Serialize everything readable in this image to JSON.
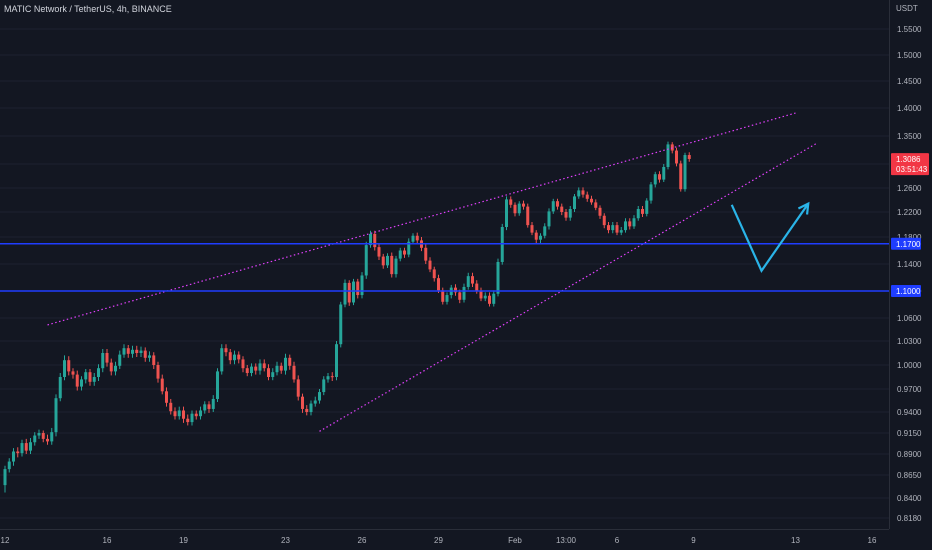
{
  "header": {
    "title": "MATIC Network / TetherUS, 4h, BINANCE"
  },
  "colors": {
    "background": "#131722",
    "up": "#26a69a",
    "down": "#ef5350",
    "hline": "#1f3dff",
    "channel": "#e040fb",
    "arrow": "#2ab4e8",
    "axis_text": "#b2b5be",
    "price_tag": "#f23645"
  },
  "chart_data": {
    "type": "candlestick",
    "symbol": "MATIC Network / TetherUS",
    "interval": "4h",
    "exchange": "BINANCE",
    "y_axis": {
      "unit_label": "USDT",
      "range": [
        0.8,
        1.57
      ],
      "ticks": [
        "1.5500",
        "1.5000",
        "1.4500",
        "1.4000",
        "1.3500",
        "1.3000",
        "1.2600",
        "1.2200",
        "1.1800",
        "1.1400",
        "1.1000",
        "1.0600",
        "1.0300",
        "1.0000",
        "0.9700",
        "0.9400",
        "0.9150",
        "0.8900",
        "0.8650",
        "0.8400",
        "0.8180"
      ],
      "tick_values": [
        1.55,
        1.5,
        1.45,
        1.4,
        1.35,
        1.3,
        1.26,
        1.22,
        1.18,
        1.14,
        1.1,
        1.06,
        1.03,
        1.0,
        0.97,
        0.94,
        0.915,
        0.89,
        0.865,
        0.84,
        0.818
      ]
    },
    "x_axis": {
      "ticks": [
        "12",
        "16",
        "19",
        "23",
        "26",
        "29",
        "Feb",
        "13:00",
        "6",
        "9",
        "13",
        "16"
      ],
      "tick_index": [
        0,
        24,
        42,
        66,
        84,
        102,
        120,
        132,
        144,
        162,
        186,
        204
      ]
    },
    "horizontal_lines": [
      {
        "price": 1.17,
        "label": "1.1700"
      },
      {
        "price": 1.1,
        "label": "1.1000"
      }
    ],
    "current_price": {
      "price": 1.3086,
      "label": "1.3086",
      "countdown": "03:51:43"
    },
    "channel_lines": [
      {
        "from": {
          "i": 10,
          "price": 1.051
        },
        "to": {
          "i": 186,
          "price": 1.391
        }
      },
      {
        "from": {
          "i": 74,
          "price": 0.917
        },
        "to": {
          "i": 191,
          "price": 1.337
        }
      }
    ],
    "projection_arrow": [
      {
        "i": 171,
        "price": 1.232
      },
      {
        "i": 178,
        "price": 1.13
      },
      {
        "i": 189,
        "price": 1.234
      }
    ],
    "candles": [
      [
        0.854,
        0.872,
        0.846,
        0.876
      ],
      [
        0.872,
        0.881,
        0.868,
        0.885
      ],
      [
        0.881,
        0.893,
        0.876,
        0.897
      ],
      [
        0.893,
        0.891,
        0.886,
        0.898
      ],
      [
        0.891,
        0.903,
        0.887,
        0.907
      ],
      [
        0.903,
        0.894,
        0.89,
        0.908
      ],
      [
        0.894,
        0.904,
        0.89,
        0.909
      ],
      [
        0.904,
        0.912,
        0.9,
        0.916
      ],
      [
        0.912,
        0.915,
        0.908,
        0.919
      ],
      [
        0.915,
        0.908,
        0.904,
        0.918
      ],
      [
        0.908,
        0.905,
        0.901,
        0.913
      ],
      [
        0.905,
        0.916,
        0.901,
        0.921
      ],
      [
        0.916,
        0.958,
        0.911,
        0.963
      ],
      [
        0.958,
        0.985,
        0.954,
        0.99
      ],
      [
        0.985,
        1.006,
        0.981,
        1.012
      ],
      [
        1.006,
        0.992,
        0.987,
        1.011
      ],
      [
        0.992,
        0.988,
        0.983,
        0.996
      ],
      [
        0.988,
        0.973,
        0.968,
        0.993
      ],
      [
        0.973,
        0.982,
        0.968,
        0.986
      ],
      [
        0.982,
        0.991,
        0.977,
        0.995
      ],
      [
        0.991,
        0.979,
        0.974,
        0.995
      ],
      [
        0.979,
        0.985,
        0.974,
        0.99
      ],
      [
        0.985,
        0.996,
        0.98,
        1.001
      ],
      [
        0.996,
        1.015,
        0.991,
        1.02
      ],
      [
        1.015,
        1.003,
        0.998,
        1.02
      ],
      [
        1.003,
        0.992,
        0.987,
        1.008
      ],
      [
        0.992,
        0.999,
        0.987,
        1.004
      ],
      [
        0.999,
        1.013,
        0.995,
        1.018
      ],
      [
        1.013,
        1.021,
        1.009,
        1.026
      ],
      [
        1.021,
        1.014,
        1.009,
        1.025
      ],
      [
        1.014,
        1.019,
        1.009,
        1.024
      ],
      [
        1.019,
        1.015,
        1.01,
        1.024
      ],
      [
        1.015,
        1.018,
        1.01,
        1.023
      ],
      [
        1.018,
        1.009,
        1.004,
        1.022
      ],
      [
        1.009,
        1.012,
        1.004,
        1.017
      ],
      [
        1.012,
        1.0,
        0.995,
        1.016
      ],
      [
        1.0,
        0.983,
        0.978,
        1.004
      ],
      [
        0.983,
        0.967,
        0.963,
        0.988
      ],
      [
        0.967,
        0.952,
        0.947,
        0.972
      ],
      [
        0.952,
        0.941,
        0.937,
        0.957
      ],
      [
        0.941,
        0.935,
        0.931,
        0.946
      ],
      [
        0.935,
        0.942,
        0.931,
        0.947
      ],
      [
        0.942,
        0.932,
        0.927,
        0.947
      ],
      [
        0.932,
        0.928,
        0.924,
        0.937
      ],
      [
        0.928,
        0.938,
        0.924,
        0.942
      ],
      [
        0.938,
        0.935,
        0.931,
        0.942
      ],
      [
        0.935,
        0.942,
        0.931,
        0.947
      ],
      [
        0.942,
        0.95,
        0.938,
        0.954
      ],
      [
        0.95,
        0.944,
        0.939,
        0.954
      ],
      [
        0.944,
        0.957,
        0.94,
        0.962
      ],
      [
        0.957,
        0.992,
        0.953,
        0.996
      ],
      [
        0.992,
        1.021,
        0.988,
        1.026
      ],
      [
        1.021,
        1.016,
        1.011,
        1.026
      ],
      [
        1.016,
        1.006,
        1.001,
        1.02
      ],
      [
        1.006,
        1.013,
        1.001,
        1.018
      ],
      [
        1.013,
        1.007,
        1.002,
        1.017
      ],
      [
        1.007,
        0.996,
        0.991,
        1.011
      ],
      [
        0.996,
        0.99,
        0.986,
        1.0
      ],
      [
        0.99,
        0.998,
        0.986,
        1.002
      ],
      [
        0.998,
        0.993,
        0.988,
        1.002
      ],
      [
        0.993,
        1.002,
        0.988,
        1.007
      ],
      [
        1.002,
        0.996,
        0.992,
        1.007
      ],
      [
        0.996,
        0.985,
        0.981,
        1.001
      ],
      [
        0.985,
        0.991,
        0.981,
        0.996
      ],
      [
        0.991,
        0.999,
        0.987,
        1.004
      ],
      [
        0.999,
        0.993,
        0.989,
        1.003
      ],
      [
        0.993,
        1.009,
        0.988,
        1.014
      ],
      [
        1.009,
        0.999,
        0.994,
        1.013
      ],
      [
        0.999,
        0.982,
        0.978,
        1.004
      ],
      [
        0.982,
        0.96,
        0.955,
        0.987
      ],
      [
        0.96,
        0.944,
        0.939,
        0.964
      ],
      [
        0.944,
        0.94,
        0.936,
        0.949
      ],
      [
        0.94,
        0.951,
        0.936,
        0.955
      ],
      [
        0.951,
        0.955,
        0.947,
        0.96
      ],
      [
        0.955,
        0.966,
        0.951,
        0.97
      ],
      [
        0.966,
        0.982,
        0.962,
        0.986
      ],
      [
        0.982,
        0.986,
        0.978,
        0.99
      ],
      [
        0.986,
        0.985,
        0.98,
        0.991
      ],
      [
        0.985,
        1.026,
        0.981,
        1.03
      ],
      [
        1.026,
        1.08,
        1.022,
        1.084
      ],
      [
        1.08,
        1.112,
        1.076,
        1.117
      ],
      [
        1.112,
        1.083,
        1.078,
        1.116
      ],
      [
        1.083,
        1.114,
        1.079,
        1.118
      ],
      [
        1.114,
        1.094,
        1.089,
        1.118
      ],
      [
        1.094,
        1.123,
        1.089,
        1.128
      ],
      [
        1.123,
        1.168,
        1.118,
        1.173
      ],
      [
        1.168,
        1.185,
        1.164,
        1.19
      ],
      [
        1.185,
        1.165,
        1.16,
        1.19
      ],
      [
        1.165,
        1.151,
        1.146,
        1.17
      ],
      [
        1.151,
        1.138,
        1.133,
        1.155
      ],
      [
        1.138,
        1.152,
        1.134,
        1.156
      ],
      [
        1.152,
        1.125,
        1.12,
        1.157
      ],
      [
        1.125,
        1.148,
        1.12,
        1.152
      ],
      [
        1.148,
        1.16,
        1.144,
        1.164
      ],
      [
        1.16,
        1.154,
        1.149,
        1.164
      ],
      [
        1.154,
        1.173,
        1.15,
        1.178
      ],
      [
        1.173,
        1.182,
        1.169,
        1.186
      ],
      [
        1.182,
        1.175,
        1.17,
        1.187
      ],
      [
        1.175,
        1.164,
        1.159,
        1.18
      ],
      [
        1.164,
        1.145,
        1.14,
        1.169
      ],
      [
        1.145,
        1.132,
        1.128,
        1.15
      ],
      [
        1.132,
        1.119,
        1.114,
        1.136
      ],
      [
        1.119,
        1.101,
        1.097,
        1.124
      ],
      [
        1.101,
        1.084,
        1.08,
        1.105
      ],
      [
        1.084,
        1.094,
        1.08,
        1.098
      ],
      [
        1.094,
        1.105,
        1.089,
        1.109
      ],
      [
        1.105,
        1.098,
        1.093,
        1.11
      ],
      [
        1.098,
        1.087,
        1.082,
        1.102
      ],
      [
        1.087,
        1.106,
        1.083,
        1.111
      ],
      [
        1.106,
        1.122,
        1.102,
        1.127
      ],
      [
        1.122,
        1.111,
        1.106,
        1.127
      ],
      [
        1.111,
        1.1,
        1.096,
        1.116
      ],
      [
        1.1,
        1.089,
        1.085,
        1.105
      ],
      [
        1.089,
        1.093,
        1.085,
        1.098
      ],
      [
        1.093,
        1.081,
        1.077,
        1.098
      ],
      [
        1.081,
        1.096,
        1.077,
        1.101
      ],
      [
        1.096,
        1.143,
        1.092,
        1.148
      ],
      [
        1.143,
        1.196,
        1.139,
        1.201
      ],
      [
        1.196,
        1.241,
        1.191,
        1.246
      ],
      [
        1.241,
        1.232,
        1.227,
        1.246
      ],
      [
        1.232,
        1.218,
        1.213,
        1.236
      ],
      [
        1.218,
        1.234,
        1.214,
        1.238
      ],
      [
        1.234,
        1.229,
        1.224,
        1.239
      ],
      [
        1.229,
        1.199,
        1.195,
        1.234
      ],
      [
        1.199,
        1.187,
        1.183,
        1.204
      ],
      [
        1.187,
        1.176,
        1.171,
        1.191
      ],
      [
        1.176,
        1.182,
        1.171,
        1.186
      ],
      [
        1.182,
        1.197,
        1.178,
        1.202
      ],
      [
        1.197,
        1.221,
        1.192,
        1.226
      ],
      [
        1.221,
        1.238,
        1.217,
        1.242
      ],
      [
        1.238,
        1.229,
        1.224,
        1.242
      ],
      [
        1.229,
        1.22,
        1.215,
        1.234
      ],
      [
        1.22,
        1.211,
        1.206,
        1.225
      ],
      [
        1.211,
        1.225,
        1.206,
        1.23
      ],
      [
        1.225,
        1.246,
        1.22,
        1.25
      ],
      [
        1.246,
        1.256,
        1.242,
        1.261
      ],
      [
        1.256,
        1.249,
        1.244,
        1.261
      ],
      [
        1.249,
        1.242,
        1.237,
        1.254
      ],
      [
        1.242,
        1.236,
        1.232,
        1.247
      ],
      [
        1.236,
        1.227,
        1.223,
        1.241
      ],
      [
        1.227,
        1.214,
        1.209,
        1.231
      ],
      [
        1.214,
        1.199,
        1.194,
        1.218
      ],
      [
        1.199,
        1.191,
        1.186,
        1.204
      ],
      [
        1.191,
        1.199,
        1.186,
        1.204
      ],
      [
        1.199,
        1.187,
        1.183,
        1.204
      ],
      [
        1.187,
        1.191,
        1.183,
        1.196
      ],
      [
        1.191,
        1.205,
        1.187,
        1.21
      ],
      [
        1.205,
        1.197,
        1.192,
        1.21
      ],
      [
        1.197,
        1.21,
        1.193,
        1.215
      ],
      [
        1.21,
        1.225,
        1.206,
        1.23
      ],
      [
        1.225,
        1.217,
        1.212,
        1.23
      ],
      [
        1.217,
        1.239,
        1.213,
        1.243
      ],
      [
        1.239,
        1.266,
        1.234,
        1.27
      ],
      [
        1.266,
        1.283,
        1.261,
        1.287
      ],
      [
        1.283,
        1.274,
        1.269,
        1.288
      ],
      [
        1.274,
        1.295,
        1.27,
        1.3
      ],
      [
        1.295,
        1.335,
        1.291,
        1.34
      ],
      [
        1.335,
        1.324,
        1.319,
        1.339
      ],
      [
        1.324,
        1.301,
        1.296,
        1.329
      ],
      [
        1.301,
        1.258,
        1.254,
        1.306
      ],
      [
        1.258,
        1.316,
        1.254,
        1.32
      ],
      [
        1.316,
        1.309,
        1.304,
        1.321
      ]
    ]
  }
}
